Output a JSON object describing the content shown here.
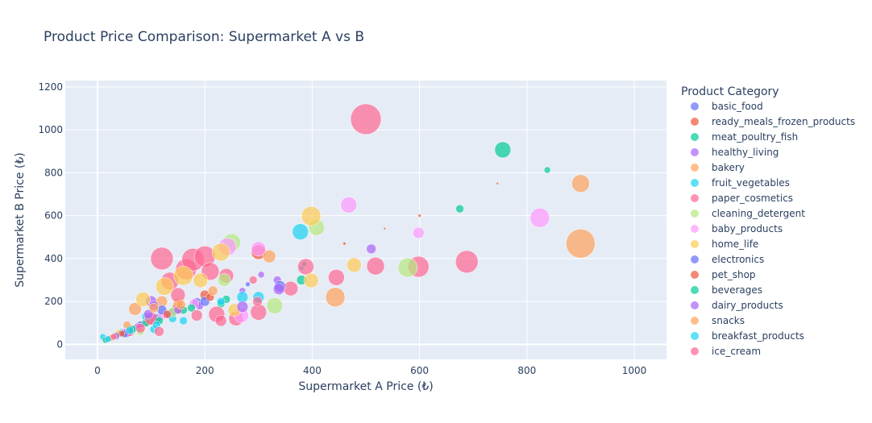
{
  "chart_data": {
    "type": "scatter",
    "title": "Product Price Comparison: Supermarket A vs B",
    "xlabel": "Supermarket A Price (₺)",
    "ylabel": "Supermarket B Price (₺)",
    "xlim": [
      -60,
      1060
    ],
    "ylim": [
      -70,
      1230
    ],
    "xticks": [
      0,
      200,
      400,
      600,
      800,
      1000
    ],
    "yticks": [
      0,
      200,
      400,
      600,
      800,
      1000,
      1200
    ],
    "grid": true,
    "legend_title": "Product Category",
    "legend_position": "right",
    "series": [
      {
        "name": "basic_food",
        "color": "#636efa",
        "points": [
          {
            "x": 20,
            "y": 25,
            "s": 4
          },
          {
            "x": 35,
            "y": 40,
            "s": 5
          },
          {
            "x": 55,
            "y": 55,
            "s": 6
          },
          {
            "x": 80,
            "y": 90,
            "s": 5
          },
          {
            "x": 110,
            "y": 120,
            "s": 6
          },
          {
            "x": 140,
            "y": 150,
            "s": 5
          },
          {
            "x": 185,
            "y": 195,
            "s": 6
          },
          {
            "x": 280,
            "y": 280,
            "s": 3
          }
        ]
      },
      {
        "name": "ready_meals_frozen_products",
        "color": "#ef553b",
        "points": [
          {
            "x": 60,
            "y": 70,
            "s": 5
          },
          {
            "x": 95,
            "y": 110,
            "s": 6
          },
          {
            "x": 150,
            "y": 170,
            "s": 7
          },
          {
            "x": 200,
            "y": 230,
            "s": 6
          },
          {
            "x": 300,
            "y": 430,
            "s": 9
          },
          {
            "x": 460,
            "y": 470,
            "s": 2
          },
          {
            "x": 600,
            "y": 600,
            "s": 2
          },
          {
            "x": 745,
            "y": 750,
            "s": 1.5
          }
        ]
      },
      {
        "name": "meat_poultry_fish",
        "color": "#00cc96",
        "points": [
          {
            "x": 40,
            "y": 45,
            "s": 4
          },
          {
            "x": 90,
            "y": 100,
            "s": 5
          },
          {
            "x": 160,
            "y": 160,
            "s": 5
          },
          {
            "x": 230,
            "y": 190,
            "s": 5
          },
          {
            "x": 380,
            "y": 300,
            "s": 6
          },
          {
            "x": 385,
            "y": 375,
            "s": 3
          },
          {
            "x": 675,
            "y": 632,
            "s": 5
          },
          {
            "x": 755,
            "y": 907,
            "s": 10
          },
          {
            "x": 838,
            "y": 813,
            "s": 4
          }
        ]
      },
      {
        "name": "healthy_living",
        "color": "#ab63fa",
        "points": [
          {
            "x": 30,
            "y": 35,
            "s": 4
          },
          {
            "x": 75,
            "y": 80,
            "s": 5
          },
          {
            "x": 100,
            "y": 200,
            "s": 7
          },
          {
            "x": 130,
            "y": 140,
            "s": 5
          },
          {
            "x": 190,
            "y": 180,
            "s": 5
          },
          {
            "x": 270,
            "y": 250,
            "s": 4
          },
          {
            "x": 335,
            "y": 300,
            "s": 5
          },
          {
            "x": 510,
            "y": 445,
            "s": 6
          }
        ]
      },
      {
        "name": "bakery",
        "color": "#ffa15a",
        "points": [
          {
            "x": 25,
            "y": 30,
            "s": 4
          },
          {
            "x": 70,
            "y": 165,
            "s": 8
          },
          {
            "x": 120,
            "y": 200,
            "s": 7
          },
          {
            "x": 150,
            "y": 195,
            "s": 6
          },
          {
            "x": 320,
            "y": 410,
            "s": 8
          },
          {
            "x": 443,
            "y": 220,
            "s": 12
          },
          {
            "x": 900,
            "y": 750,
            "s": 11
          },
          {
            "x": 900,
            "y": 470,
            "s": 18
          }
        ]
      },
      {
        "name": "fruit_vegetables",
        "color": "#19d3f3",
        "points": [
          {
            "x": 10,
            "y": 35,
            "s": 4
          },
          {
            "x": 45,
            "y": 55,
            "s": 5
          },
          {
            "x": 90,
            "y": 130,
            "s": 5
          },
          {
            "x": 105,
            "y": 70,
            "s": 5
          },
          {
            "x": 140,
            "y": 120,
            "s": 5
          },
          {
            "x": 270,
            "y": 220,
            "s": 7
          },
          {
            "x": 300,
            "y": 220,
            "s": 7
          },
          {
            "x": 380,
            "y": 355,
            "s": 3
          },
          {
            "x": 378,
            "y": 525,
            "s": 10
          }
        ]
      },
      {
        "name": "paper_cosmetics",
        "color": "#ff6692",
        "points": [
          {
            "x": 60,
            "y": 60,
            "s": 6
          },
          {
            "x": 100,
            "y": 120,
            "s": 8
          },
          {
            "x": 120,
            "y": 400,
            "s": 14
          },
          {
            "x": 135,
            "y": 295,
            "s": 11
          },
          {
            "x": 150,
            "y": 230,
            "s": 9
          },
          {
            "x": 165,
            "y": 350,
            "s": 13
          },
          {
            "x": 178,
            "y": 395,
            "s": 14
          },
          {
            "x": 200,
            "y": 410,
            "s": 13
          },
          {
            "x": 210,
            "y": 340,
            "s": 11
          },
          {
            "x": 222,
            "y": 140,
            "s": 10
          },
          {
            "x": 240,
            "y": 320,
            "s": 9
          },
          {
            "x": 258,
            "y": 120,
            "s": 9
          },
          {
            "x": 300,
            "y": 150,
            "s": 10
          },
          {
            "x": 360,
            "y": 260,
            "s": 9
          },
          {
            "x": 388,
            "y": 362,
            "s": 10
          },
          {
            "x": 445,
            "y": 312,
            "s": 10
          },
          {
            "x": 518,
            "y": 365,
            "s": 11
          },
          {
            "x": 598,
            "y": 362,
            "s": 13
          },
          {
            "x": 688,
            "y": 385,
            "s": 14
          },
          {
            "x": 500,
            "y": 1050,
            "s": 19
          }
        ]
      },
      {
        "name": "cleaning_detergent",
        "color": "#b6e880",
        "points": [
          {
            "x": 30,
            "y": 40,
            "s": 4
          },
          {
            "x": 80,
            "y": 60,
            "s": 5
          },
          {
            "x": 140,
            "y": 150,
            "s": 6
          },
          {
            "x": 250,
            "y": 475,
            "s": 11
          },
          {
            "x": 236,
            "y": 300,
            "s": 8
          },
          {
            "x": 330,
            "y": 180,
            "s": 10
          },
          {
            "x": 408,
            "y": 545,
            "s": 10
          },
          {
            "x": 578,
            "y": 358,
            "s": 12
          }
        ]
      },
      {
        "name": "baby_products",
        "color": "#ff97ff",
        "points": [
          {
            "x": 50,
            "y": 60,
            "s": 4
          },
          {
            "x": 120,
            "y": 130,
            "s": 5
          },
          {
            "x": 180,
            "y": 190,
            "s": 6
          },
          {
            "x": 242,
            "y": 455,
            "s": 11
          },
          {
            "x": 268,
            "y": 135,
            "s": 9
          },
          {
            "x": 300,
            "y": 445,
            "s": 9
          },
          {
            "x": 468,
            "y": 650,
            "s": 10
          },
          {
            "x": 598,
            "y": 520,
            "s": 7
          },
          {
            "x": 824,
            "y": 590,
            "s": 12
          }
        ]
      },
      {
        "name": "home_life",
        "color": "#fecb52",
        "points": [
          {
            "x": 40,
            "y": 50,
            "s": 5
          },
          {
            "x": 85,
            "y": 210,
            "s": 9
          },
          {
            "x": 125,
            "y": 270,
            "s": 11
          },
          {
            "x": 160,
            "y": 320,
            "s": 12
          },
          {
            "x": 192,
            "y": 298,
            "s": 9
          },
          {
            "x": 230,
            "y": 430,
            "s": 11
          },
          {
            "x": 255,
            "y": 160,
            "s": 8
          },
          {
            "x": 398,
            "y": 298,
            "s": 9
          },
          {
            "x": 398,
            "y": 598,
            "s": 12
          },
          {
            "x": 478,
            "y": 370,
            "s": 9
          }
        ]
      },
      {
        "name": "electronics",
        "color": "#636efa",
        "points": [
          {
            "x": 50,
            "y": 50,
            "s": 5
          },
          {
            "x": 120,
            "y": 160,
            "s": 6
          },
          {
            "x": 200,
            "y": 200,
            "s": 6
          },
          {
            "x": 340,
            "y": 270,
            "s": 7
          }
        ]
      },
      {
        "name": "pet_shop",
        "color": "#ef553b",
        "points": [
          {
            "x": 45,
            "y": 50,
            "s": 4
          },
          {
            "x": 130,
            "y": 140,
            "s": 5
          },
          {
            "x": 210,
            "y": 220,
            "s": 5
          },
          {
            "x": 535,
            "y": 540,
            "s": 1.5
          }
        ]
      },
      {
        "name": "beverages",
        "color": "#00cc96",
        "points": [
          {
            "x": 15,
            "y": 20,
            "s": 4
          },
          {
            "x": 65,
            "y": 70,
            "s": 5
          },
          {
            "x": 115,
            "y": 110,
            "s": 5
          },
          {
            "x": 175,
            "y": 170,
            "s": 5
          },
          {
            "x": 240,
            "y": 210,
            "s": 5
          }
        ]
      },
      {
        "name": "dairy_products",
        "color": "#ab63fa",
        "points": [
          {
            "x": 35,
            "y": 40,
            "s": 4
          },
          {
            "x": 95,
            "y": 140,
            "s": 6
          },
          {
            "x": 105,
            "y": 180,
            "s": 6
          },
          {
            "x": 150,
            "y": 160,
            "s": 5
          },
          {
            "x": 270,
            "y": 175,
            "s": 7
          },
          {
            "x": 305,
            "y": 325,
            "s": 4
          },
          {
            "x": 338,
            "y": 258,
            "s": 7
          }
        ]
      },
      {
        "name": "snacks",
        "color": "#ffa15a",
        "points": [
          {
            "x": 25,
            "y": 30,
            "s": 4
          },
          {
            "x": 55,
            "y": 90,
            "s": 5
          },
          {
            "x": 105,
            "y": 170,
            "s": 6
          },
          {
            "x": 155,
            "y": 185,
            "s": 6
          },
          {
            "x": 215,
            "y": 250,
            "s": 6
          }
        ]
      },
      {
        "name": "breakfast_products",
        "color": "#19d3f3",
        "points": [
          {
            "x": 20,
            "y": 25,
            "s": 4
          },
          {
            "x": 60,
            "y": 65,
            "s": 5
          },
          {
            "x": 110,
            "y": 90,
            "s": 5
          },
          {
            "x": 160,
            "y": 110,
            "s": 5
          },
          {
            "x": 230,
            "y": 200,
            "s": 5
          }
        ]
      },
      {
        "name": "ice_cream",
        "color": "#ff6692",
        "points": [
          {
            "x": 30,
            "y": 35,
            "s": 4
          },
          {
            "x": 80,
            "y": 75,
            "s": 6
          },
          {
            "x": 115,
            "y": 60,
            "s": 6
          },
          {
            "x": 185,
            "y": 135,
            "s": 7
          },
          {
            "x": 230,
            "y": 110,
            "s": 7
          },
          {
            "x": 290,
            "y": 300,
            "s": 5
          },
          {
            "x": 298,
            "y": 200,
            "s": 6
          }
        ]
      }
    ]
  }
}
